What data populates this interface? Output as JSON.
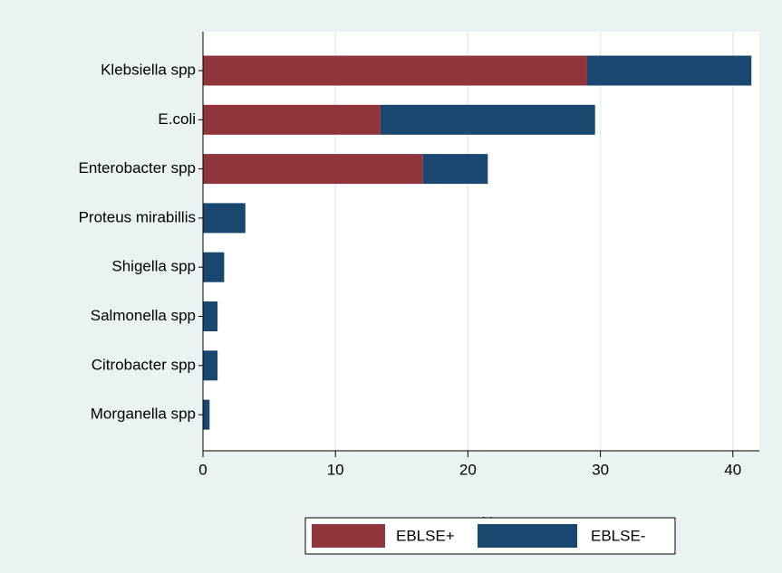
{
  "chart_data": {
    "type": "stacked_barh",
    "categories": [
      "Klebsiella spp",
      "E.coli",
      "Enterobacter spp",
      "Proteus mirabillis",
      "Shigella spp",
      "Salmonella spp",
      "Citrobacter spp",
      "Morganella spp"
    ],
    "series": [
      {
        "name": "EBLSE+",
        "color": "#90353b",
        "values": [
          29.0,
          13.4,
          16.6,
          0,
          0,
          0,
          0,
          0
        ]
      },
      {
        "name": "EBLSE-",
        "color": "#1a476f",
        "values": [
          12.4,
          16.2,
          4.9,
          3.2,
          1.6,
          1.1,
          1.1,
          0.5
        ]
      }
    ],
    "xlabel": "%",
    "xlim": [
      0,
      42
    ],
    "xticks": [
      0,
      10,
      20,
      30,
      40
    ],
    "grid": true
  }
}
